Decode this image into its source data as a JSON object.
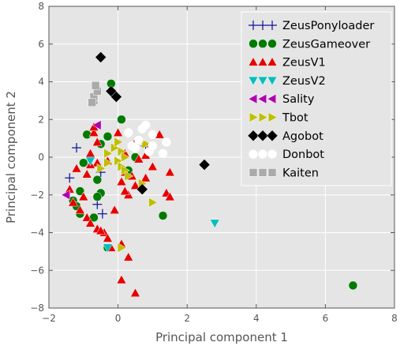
{
  "chart_data": {
    "type": "scatter",
    "xlabel": "Principal component 1",
    "ylabel": "Principal component 2",
    "xlim": [
      -2,
      8
    ],
    "ylim": [
      -8,
      8
    ],
    "x_ticks": [
      "−2",
      "0",
      "2",
      "4",
      "6",
      "8"
    ],
    "y_ticks": [
      "−8",
      "−6",
      "−4",
      "−2",
      "0",
      "2",
      "4",
      "6",
      "8"
    ],
    "x_tick_values": [
      -2,
      0,
      2,
      4,
      6,
      8
    ],
    "y_tick_values": [
      -8,
      -6,
      -4,
      -2,
      0,
      2,
      4,
      6,
      8
    ],
    "grid": true,
    "legend_position": "top-right",
    "background_color": "#e5e5e5",
    "grid_color": "#ffffff",
    "series": [
      {
        "name": "ZeusPonyloader",
        "marker": "plus",
        "color": "#1a1a9e",
        "points": [
          [
            -1.2,
            0.5
          ],
          [
            -0.6,
            -2.5
          ],
          [
            -0.45,
            -3.0
          ],
          [
            0.8,
            0.6
          ],
          [
            -0.5,
            -0.8
          ],
          [
            -1.4,
            -1.1
          ]
        ]
      },
      {
        "name": "ZeusGameover",
        "marker": "circle",
        "color": "#007a00",
        "points": [
          [
            -0.2,
            3.9
          ],
          [
            0.1,
            2.0
          ],
          [
            -0.3,
            1.1
          ],
          [
            -0.9,
            1.2
          ],
          [
            -0.5,
            0.7
          ],
          [
            -1.0,
            -0.3
          ],
          [
            -0.6,
            -1.2
          ],
          [
            -1.1,
            -1.8
          ],
          [
            -0.5,
            -1.9
          ],
          [
            -1.3,
            -2.3
          ],
          [
            -1.2,
            -2.6
          ],
          [
            -1.1,
            -3.0
          ],
          [
            -0.7,
            -3.2
          ],
          [
            -0.6,
            -2.1
          ],
          [
            1.3,
            -3.1
          ],
          [
            0.3,
            -0.7
          ],
          [
            0.5,
            0.0
          ],
          [
            6.8,
            -6.8
          ],
          [
            -0.3,
            -4.8
          ]
        ]
      },
      {
        "name": "ZeusV1",
        "marker": "triangle-up",
        "color": "#e60000",
        "points": [
          [
            -0.7,
            1.3
          ],
          [
            -0.6,
            0.8
          ],
          [
            -0.8,
            0.2
          ],
          [
            -1.2,
            -0.6
          ],
          [
            -0.9,
            -0.9
          ],
          [
            -1.4,
            -1.7
          ],
          [
            -1.0,
            -2.1
          ],
          [
            -1.1,
            -2.8
          ],
          [
            -0.9,
            -3.2
          ],
          [
            -0.8,
            -3.5
          ],
          [
            -0.6,
            -3.8
          ],
          [
            -0.4,
            -4.0
          ],
          [
            -0.3,
            -4.3
          ],
          [
            0.1,
            -4.6
          ],
          [
            0.3,
            -5.3
          ],
          [
            0.1,
            -6.5
          ],
          [
            0.5,
            -7.2
          ],
          [
            0.5,
            -1.5
          ],
          [
            0.8,
            -1.1
          ],
          [
            1.0,
            -0.5
          ],
          [
            1.5,
            -0.8
          ],
          [
            1.4,
            -1.9
          ],
          [
            0.2,
            -0.8
          ],
          [
            0.3,
            -2.0
          ],
          [
            0.4,
            -1.0
          ],
          [
            0.9,
            0.5
          ],
          [
            0.5,
            0.8
          ],
          [
            0.2,
            0.2
          ],
          [
            1.2,
            1.2
          ],
          [
            0.0,
            1.3
          ],
          [
            0.1,
            -1.3
          ],
          [
            -0.6,
            -0.3
          ],
          [
            -0.8,
            -0.4
          ],
          [
            -0.3,
            -0.2
          ],
          [
            -0.1,
            -2.8
          ],
          [
            -0.5,
            -3.9
          ],
          [
            0.6,
            -0.1
          ],
          [
            0.8,
            0.1
          ],
          [
            1.5,
            -2.1
          ],
          [
            0.2,
            -1.8
          ],
          [
            -0.2,
            -4.8
          ],
          [
            -1.3,
            -2.4
          ],
          [
            -0.7,
            1.6
          ]
        ]
      },
      {
        "name": "ZeusV2",
        "marker": "triangle-down",
        "color": "#00bfbf",
        "points": [
          [
            -0.8,
            -0.2
          ],
          [
            -0.3,
            -4.8
          ],
          [
            2.8,
            -3.5
          ]
        ]
      },
      {
        "name": "Sality",
        "marker": "triangle-left",
        "color": "#b000b0",
        "points": [
          [
            -0.6,
            1.7
          ],
          [
            -1.5,
            -2.0
          ]
        ]
      },
      {
        "name": "Tbot",
        "marker": "triangle-right",
        "color": "#bfbf00",
        "points": [
          [
            -0.5,
            -0.6
          ],
          [
            -0.3,
            0.2
          ],
          [
            -0.1,
            0.5
          ],
          [
            0.0,
            0.8
          ],
          [
            0.1,
            0.3
          ],
          [
            0.0,
            -0.2
          ],
          [
            0.1,
            -0.5
          ],
          [
            0.2,
            -0.7
          ],
          [
            0.3,
            -1.0
          ],
          [
            0.7,
            -1.4
          ],
          [
            1.0,
            -2.4
          ],
          [
            0.1,
            -4.8
          ],
          [
            -0.3,
            -0.3
          ],
          [
            0.2,
            0.0
          ],
          [
            0.8,
            0.7
          ],
          [
            0.5,
            0.6
          ]
        ]
      },
      {
        "name": "Agobot",
        "marker": "diamond",
        "color": "#000000",
        "points": [
          [
            -0.5,
            5.3
          ],
          [
            -0.2,
            3.5
          ],
          [
            -0.05,
            3.2
          ],
          [
            2.5,
            -0.4
          ],
          [
            0.7,
            -1.7
          ]
        ]
      },
      {
        "name": "Donbot",
        "marker": "circle-open",
        "color": "#ffffff",
        "points": [
          [
            0.3,
            1.3
          ],
          [
            0.7,
            1.5
          ],
          [
            0.8,
            1.7
          ],
          [
            1.0,
            1.2
          ],
          [
            1.0,
            0.6
          ],
          [
            0.6,
            0.9
          ],
          [
            0.4,
            0.6
          ],
          [
            1.4,
            0.8
          ],
          [
            1.3,
            0.2
          ],
          [
            0.9,
            0.3
          ],
          [
            0.5,
            0.5
          ]
        ]
      },
      {
        "name": "Kaiten",
        "marker": "square",
        "color": "#aaaaaa",
        "points": [
          [
            -0.7,
            3.0
          ],
          [
            -0.7,
            3.2
          ],
          [
            -0.6,
            3.5
          ],
          [
            -0.65,
            3.8
          ],
          [
            -0.75,
            2.9
          ]
        ]
      }
    ]
  }
}
